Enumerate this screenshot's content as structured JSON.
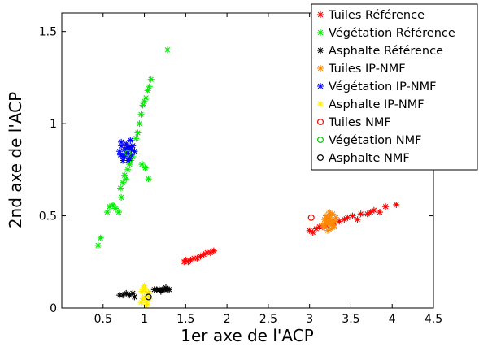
{
  "chart_data": {
    "type": "scatter",
    "xlim": [
      0,
      4.5
    ],
    "ylim": [
      0,
      1.6
    ],
    "xticks": [
      "0.5",
      "1",
      "1.5",
      "2",
      "2.5",
      "3",
      "3.5",
      "4",
      "4.5"
    ],
    "yticks": [
      "0",
      "0.5",
      "1",
      "1.5"
    ],
    "xlabel": "1er axe de l'ACP",
    "ylabel": "2nd axe de l'ACP",
    "grid": false,
    "legend_position": "top-right",
    "series": [
      {
        "name": "Tuiles Référence",
        "color": "#ff0000",
        "marker": "asterisk",
        "x": [
          1.48,
          1.5,
          1.53,
          1.56,
          1.6,
          1.64,
          1.68,
          1.72,
          1.76,
          1.8,
          1.84,
          3.0,
          3.04,
          3.08,
          3.12,
          3.16,
          3.2,
          3.3,
          3.36,
          3.42,
          3.46,
          3.52,
          3.58,
          3.62,
          3.7,
          3.74,
          3.78,
          3.85,
          3.92,
          4.05
        ],
        "y": [
          0.25,
          0.26,
          0.25,
          0.26,
          0.27,
          0.27,
          0.28,
          0.29,
          0.3,
          0.3,
          0.31,
          0.42,
          0.41,
          0.43,
          0.44,
          0.44,
          0.45,
          0.46,
          0.47,
          0.48,
          0.49,
          0.5,
          0.48,
          0.51,
          0.51,
          0.52,
          0.53,
          0.52,
          0.55,
          0.56
        ]
      },
      {
        "name": "Végétation Référence",
        "color": "#00ee00",
        "marker": "asterisk",
        "x": [
          0.44,
          0.47,
          0.55,
          0.58,
          0.62,
          0.65,
          0.69,
          0.72,
          0.71,
          0.74,
          0.76,
          0.78,
          0.8,
          0.82,
          0.84,
          0.86,
          0.88,
          0.9,
          0.92,
          0.94,
          0.96,
          0.98,
          1.0,
          1.02,
          1.04,
          1.06,
          1.08,
          0.97,
          1.01,
          1.05,
          1.28
        ],
        "y": [
          0.34,
          0.38,
          0.52,
          0.55,
          0.56,
          0.54,
          0.52,
          0.6,
          0.65,
          0.68,
          0.72,
          0.7,
          0.75,
          0.78,
          0.8,
          0.82,
          0.85,
          0.92,
          0.95,
          1.0,
          1.05,
          1.1,
          1.12,
          1.14,
          1.18,
          1.2,
          1.24,
          0.78,
          0.76,
          0.7,
          1.4
        ]
      },
      {
        "name": "Asphalte Référence",
        "color": "#000000",
        "marker": "asterisk",
        "x": [
          0.7,
          0.74,
          0.78,
          0.82,
          0.86,
          0.88,
          1.05,
          1.12,
          1.15,
          1.18,
          1.2,
          1.22,
          1.24,
          1.26,
          1.28,
          1.3
        ],
        "y": [
          0.07,
          0.07,
          0.08,
          0.07,
          0.08,
          0.06,
          0.08,
          0.1,
          0.1,
          0.1,
          0.09,
          0.1,
          0.1,
          0.11,
          0.1,
          0.1
        ]
      },
      {
        "name": "Tuiles IP-NMF",
        "color": "#ff8800",
        "marker": "asterisk",
        "x": [
          3.16,
          3.18,
          3.2,
          3.22,
          3.24,
          3.26,
          3.28,
          3.3,
          3.32,
          3.2,
          3.24,
          3.28,
          3.18,
          3.26,
          3.3,
          3.22,
          3.25,
          3.21,
          3.27,
          3.23
        ],
        "y": [
          0.45,
          0.44,
          0.46,
          0.47,
          0.48,
          0.45,
          0.46,
          0.47,
          0.49,
          0.5,
          0.52,
          0.51,
          0.48,
          0.43,
          0.44,
          0.42,
          0.5,
          0.49,
          0.47,
          0.46
        ]
      },
      {
        "name": "Végétation IP-NMF",
        "color": "#0000ff",
        "marker": "asterisk",
        "x": [
          0.7,
          0.72,
          0.74,
          0.76,
          0.78,
          0.8,
          0.82,
          0.84,
          0.86,
          0.72,
          0.76,
          0.8,
          0.84,
          0.74,
          0.78,
          0.82,
          0.88,
          0.71,
          0.79,
          0.83
        ],
        "y": [
          0.85,
          0.88,
          0.82,
          0.86,
          0.84,
          0.8,
          0.87,
          0.83,
          0.88,
          0.9,
          0.82,
          0.84,
          0.86,
          0.8,
          0.89,
          0.81,
          0.85,
          0.83,
          0.87,
          0.91
        ]
      },
      {
        "name": "Asphalte IP-NMF",
        "color": "#ffee00",
        "marker": "asterisk",
        "x": [
          0.96,
          0.98,
          1.0,
          1.02,
          1.04,
          1.06,
          0.97,
          1.01,
          1.05,
          0.99,
          1.03,
          1.0
        ],
        "y": [
          0.03,
          0.05,
          0.06,
          0.04,
          0.07,
          0.05,
          0.09,
          0.1,
          0.08,
          0.11,
          0.02,
          0.12
        ]
      },
      {
        "name": "Tuiles NMF",
        "color": "#ff0000",
        "marker": "circle",
        "x": [
          3.02
        ],
        "y": [
          0.49
        ]
      },
      {
        "name": "Végétation NMF",
        "color": "#00cc00",
        "marker": "circle",
        "x": [
          0.8
        ],
        "y": [
          0.84
        ]
      },
      {
        "name": "Asphalte NMF",
        "color": "#000000",
        "marker": "circle",
        "x": [
          1.05
        ],
        "y": [
          0.06
        ]
      }
    ]
  }
}
